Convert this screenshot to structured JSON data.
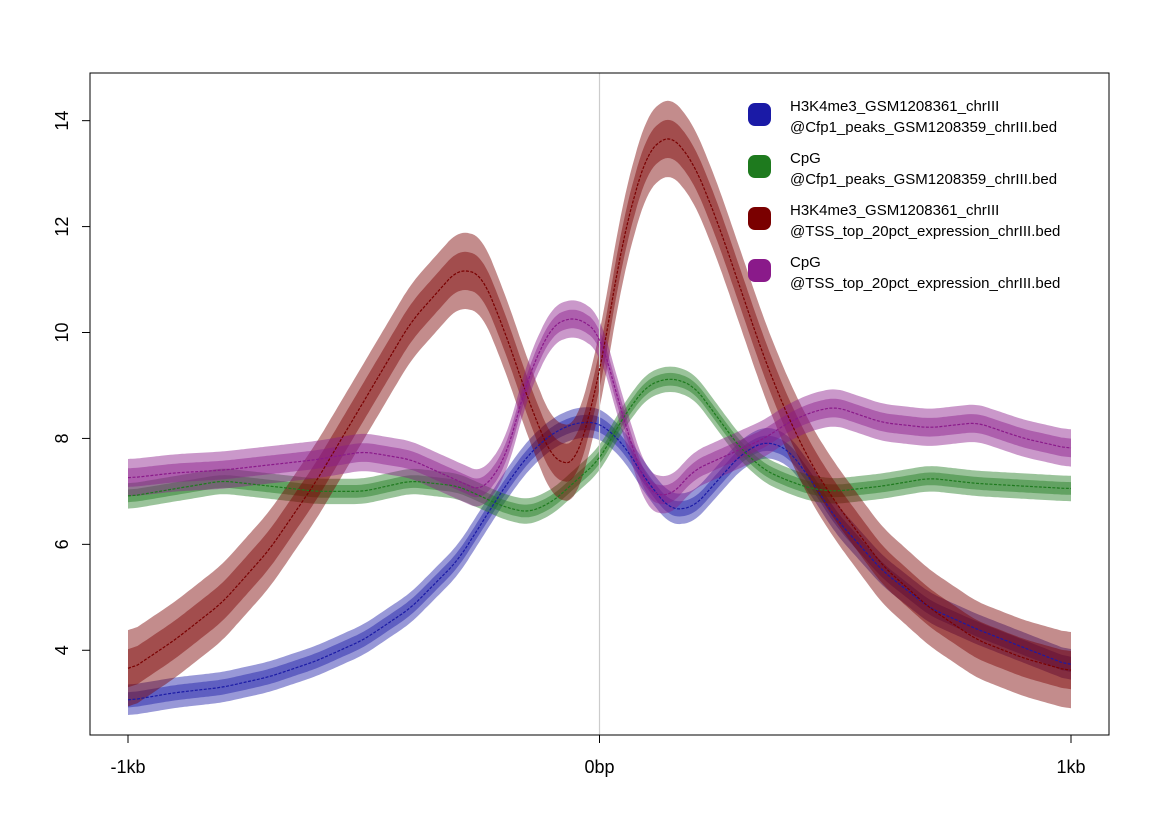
{
  "chart_data": {
    "type": "line",
    "title": "",
    "xlabel": "",
    "ylabel": "",
    "xlim": [
      -1000,
      1000
    ],
    "ylim": [
      2.4,
      14.9
    ],
    "x_ticks": [
      {
        "value": -1000,
        "label": "-1kb"
      },
      {
        "value": 0,
        "label": "0bp"
      },
      {
        "value": 1000,
        "label": "1kb"
      }
    ],
    "y_ticks": [
      {
        "value": 4,
        "label": "4"
      },
      {
        "value": 6,
        "label": "6"
      },
      {
        "value": 8,
        "label": "8"
      },
      {
        "value": 10,
        "label": "10"
      },
      {
        "value": 12,
        "label": "12"
      },
      {
        "value": 14,
        "label": "14"
      }
    ],
    "vline_x": 0,
    "legend_position": "top-right",
    "x": [
      -1000,
      -900,
      -800,
      -700,
      -600,
      -500,
      -400,
      -300,
      -250,
      -200,
      -150,
      -100,
      -50,
      0,
      50,
      100,
      150,
      200,
      250,
      300,
      350,
      400,
      450,
      500,
      600,
      700,
      800,
      900,
      1000
    ],
    "series": [
      {
        "name": "H3K4me3_GSM1208361_chrIII\n@Cfp1_peaks_GSM1208359_chrIII.bed",
        "color": "#1a1aa6",
        "band": 0.18,
        "values": [
          3.05,
          3.2,
          3.3,
          3.5,
          3.8,
          4.2,
          4.8,
          5.7,
          6.4,
          7.1,
          7.7,
          8.1,
          8.3,
          8.3,
          7.9,
          7.2,
          6.65,
          6.7,
          7.2,
          7.7,
          7.95,
          7.8,
          7.2,
          6.5,
          5.5,
          4.8,
          4.4,
          4.05,
          3.7
        ]
      },
      {
        "name": "CpG\n@Cfp1_peaks_GSM1208359_chrIII.bed",
        "color": "#1e7a1e",
        "band": 0.15,
        "values": [
          6.9,
          7.05,
          7.2,
          7.1,
          7.0,
          7.0,
          7.2,
          7.1,
          6.9,
          6.7,
          6.6,
          6.8,
          7.2,
          7.6,
          8.4,
          9.0,
          9.15,
          9.0,
          8.4,
          7.8,
          7.4,
          7.2,
          7.05,
          7.0,
          7.1,
          7.25,
          7.15,
          7.1,
          7.05
        ]
      },
      {
        "name": "H3K4me3_GSM1208361_chrIII\n@TSS_top_20pct_expression_chrIII.bed",
        "color": "#7a0000",
        "band": 0.45,
        "values": [
          3.6,
          4.2,
          4.9,
          5.9,
          7.2,
          8.7,
          10.2,
          11.2,
          11.1,
          10.0,
          8.7,
          7.6,
          7.5,
          9.2,
          11.8,
          13.4,
          13.75,
          13.2,
          12.1,
          10.8,
          9.5,
          8.4,
          7.5,
          6.8,
          5.6,
          4.8,
          4.2,
          3.85,
          3.6
        ]
      },
      {
        "name": "CpG\n@TSS_top_20pct_expression_chrIII.bed",
        "color": "#8a1a8a",
        "band": 0.22,
        "values": [
          7.25,
          7.35,
          7.4,
          7.5,
          7.6,
          7.75,
          7.6,
          7.2,
          7.0,
          7.6,
          9.2,
          10.15,
          10.3,
          10.0,
          8.4,
          7.0,
          6.9,
          7.4,
          7.6,
          7.8,
          8.0,
          8.3,
          8.5,
          8.6,
          8.3,
          8.2,
          8.3,
          8.0,
          7.8
        ]
      }
    ]
  }
}
